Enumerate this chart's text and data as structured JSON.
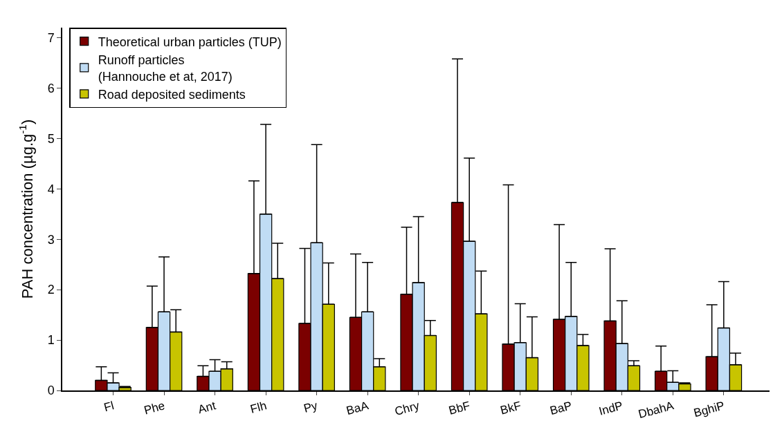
{
  "chart_data": {
    "type": "bar",
    "ylabel": "PAH concentration (µg.g$^{-1}$)",
    "categories": [
      "Fl",
      "Phe",
      "Ant",
      "Flh",
      "Py",
      "BaA",
      "Chry",
      "BbF",
      "BkF",
      "BaP",
      "IndP",
      "DbahA",
      "BghiP"
    ],
    "series": [
      {
        "name": "Theoretical urban particles (TUP)",
        "color": "#7b0000",
        "values": [
          0.2,
          1.25,
          0.28,
          2.32,
          1.33,
          1.45,
          1.91,
          3.73,
          0.92,
          1.41,
          1.38,
          0.38,
          0.67
        ],
        "errors": [
          [
            0.2,
            0.47
          ],
          [
            1.25,
            2.07
          ],
          [
            0.28,
            0.49
          ],
          [
            2.32,
            4.16
          ],
          [
            1.33,
            2.82
          ],
          [
            1.45,
            2.71
          ],
          [
            1.91,
            3.24
          ],
          [
            3.73,
            6.58
          ],
          [
            0.92,
            4.08
          ],
          [
            1.41,
            3.29
          ],
          [
            1.38,
            2.81
          ],
          [
            0.38,
            0.88
          ],
          [
            0.67,
            1.7
          ]
        ]
      },
      {
        "name": "Runoff particles\n(Hannouche et at, 2017)",
        "color": "#c0dcf4",
        "values": [
          0.15,
          1.56,
          0.38,
          3.5,
          2.93,
          1.56,
          2.14,
          2.96,
          0.95,
          1.47,
          0.93,
          0.16,
          1.24
        ],
        "errors": [
          [
            0.15,
            0.35
          ],
          [
            1.56,
            2.65
          ],
          [
            0.38,
            0.61
          ],
          [
            3.5,
            5.28
          ],
          [
            2.93,
            4.88
          ],
          [
            1.56,
            2.54
          ],
          [
            2.14,
            3.45
          ],
          [
            2.96,
            4.61
          ],
          [
            0.95,
            1.72
          ],
          [
            1.47,
            2.54
          ],
          [
            0.93,
            1.78
          ],
          [
            0.16,
            0.39
          ],
          [
            1.24,
            2.16
          ]
        ]
      },
      {
        "name": "Road deposited sediments",
        "color": "#c8c400",
        "values": [
          0.06,
          1.16,
          0.43,
          2.22,
          1.71,
          0.47,
          1.09,
          1.52,
          0.65,
          0.89,
          0.49,
          0.13,
          0.51
        ],
        "errors": [
          [
            0.06,
            0.08
          ],
          [
            1.16,
            1.6
          ],
          [
            0.43,
            0.57
          ],
          [
            2.22,
            2.92
          ],
          [
            1.71,
            2.53
          ],
          [
            0.47,
            0.63
          ],
          [
            1.09,
            1.39
          ],
          [
            1.52,
            2.37
          ],
          [
            0.65,
            1.46
          ],
          [
            0.89,
            1.11
          ],
          [
            0.49,
            0.59
          ],
          [
            0.13,
            0.15
          ],
          [
            0.51,
            0.74
          ]
        ]
      }
    ],
    "ylim": [
      0,
      7.2
    ],
    "yticks": [
      0,
      1,
      2,
      3,
      4,
      5,
      6,
      7
    ],
    "legend": "top left"
  }
}
